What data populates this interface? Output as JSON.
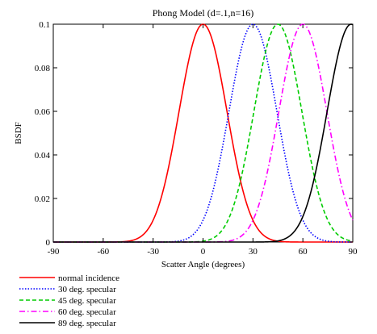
{
  "chart_data": {
    "type": "line",
    "title": "Phong Model (d=.1,n=16)",
    "xlabel": "Scatter Angle (degrees)",
    "ylabel": "BSDF",
    "xlim": [
      -90,
      90
    ],
    "ylim": [
      0,
      0.1
    ],
    "x_ticks": [
      -90,
      -60,
      -30,
      0,
      30,
      60,
      90
    ],
    "x_tick_labels": [
      "-90",
      "-60",
      "-30",
      "0",
      "30",
      "60",
      "90"
    ],
    "y_ticks": [
      0,
      0.02,
      0.04,
      0.06,
      0.08,
      0.1
    ],
    "y_tick_labels": [
      "0",
      "0.02",
      "0.04",
      "0.06",
      "0.08",
      "0.1"
    ],
    "grid": false,
    "legend_position": "bottom-left",
    "model": {
      "d": 0.1,
      "n": 16
    },
    "series": [
      {
        "name": "normal incidence",
        "specular_deg": 0,
        "color": "#ff0000",
        "dash": "solid"
      },
      {
        "name": "30 deg. specular",
        "specular_deg": 30,
        "color": "#0000ff",
        "dash": "dotted"
      },
      {
        "name": "45 deg. specular",
        "specular_deg": 45,
        "color": "#00cc00",
        "dash": "dashed"
      },
      {
        "name": "60 deg. specular",
        "specular_deg": 60,
        "color": "#ff00ff",
        "dash": "dashdot"
      },
      {
        "name": "89 deg. specular",
        "specular_deg": 89,
        "color": "#000000",
        "dash": "solid"
      }
    ]
  }
}
